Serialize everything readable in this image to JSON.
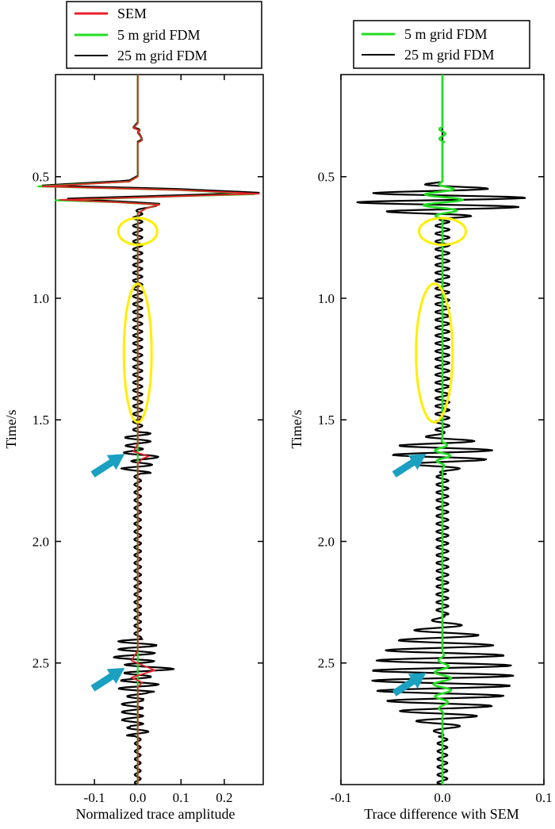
{
  "colors": {
    "sem": "#e8202a",
    "fdm5": "#22dd22",
    "fdm25": "#000000",
    "ellipse": "#ffee00",
    "arrow": "#1aa0c0"
  },
  "chart_data": [
    {
      "type": "line",
      "panel": "left",
      "xlabel": "Normalized trace amplitude",
      "ylabel": "Time/s",
      "xlim": [
        -0.19,
        0.29
      ],
      "ylim": [
        0.08,
        3.0
      ],
      "y_inverted": true,
      "xticks": [
        -0.1,
        0.0,
        0.1,
        0.2
      ],
      "xtick_labels": [
        "-0.1",
        "0.0",
        "0.1",
        "0.2"
      ],
      "yticks": [
        0.5,
        1.0,
        1.5,
        2.0,
        2.5
      ],
      "ytick_labels": [
        "0.5",
        "1.0",
        "1.5",
        "2.0",
        "2.5"
      ],
      "legend": {
        "placement": "top",
        "entries": [
          {
            "label": "SEM",
            "color": "#e8202a"
          },
          {
            "label": "5 m grid FDM",
            "color": "#22dd22"
          },
          {
            "label": "25 m grid FDM",
            "color": "#000000"
          }
        ]
      },
      "highlights": [
        {
          "shape": "ellipse",
          "t_center": 0.725,
          "t_halfspan": 0.055,
          "x_center": 0.0,
          "x_halfspan": 0.045
        },
        {
          "shape": "ellipse",
          "t_center": 1.225,
          "t_halfspan": 0.285,
          "x_center": 0.0,
          "x_halfspan": 0.032
        }
      ],
      "arrows": [
        {
          "t": 1.64,
          "x": -0.03
        },
        {
          "t": 2.52,
          "x": -0.03
        }
      ],
      "series": [
        {
          "name": "SEM",
          "color": "#e8202a",
          "points": [
            [
              0.0,
              0.08
            ],
            [
              0.0,
              0.28
            ],
            [
              -0.01,
              0.3
            ],
            [
              0.005,
              0.31
            ],
            [
              0.0,
              0.32
            ],
            [
              0.005,
              0.33
            ],
            [
              0.01,
              0.35
            ],
            [
              0.0,
              0.36
            ],
            [
              0.0,
              0.5
            ],
            [
              -0.02,
              0.52
            ],
            [
              -0.22,
              0.54
            ],
            [
              0.1,
              0.555
            ],
            [
              0.28,
              0.57
            ],
            [
              0.1,
              0.58
            ],
            [
              -0.18,
              0.595
            ],
            [
              -0.05,
              0.605
            ],
            [
              0.05,
              0.615
            ],
            [
              0.02,
              0.63
            ],
            [
              0.0,
              0.65
            ],
            [
              0.0,
              1.6
            ],
            [
              -0.01,
              1.63
            ],
            [
              0.025,
              1.65
            ],
            [
              0.01,
              1.66
            ],
            [
              0.0,
              1.68
            ],
            [
              0.0,
              2.45
            ],
            [
              -0.015,
              2.49
            ],
            [
              0.04,
              2.53
            ],
            [
              -0.015,
              2.56
            ],
            [
              0.01,
              2.58
            ],
            [
              0.0,
              2.6
            ],
            [
              0.0,
              3.0
            ]
          ]
        },
        {
          "name": "5 m grid FDM",
          "color": "#22dd22",
          "points": [
            [
              0.0,
              0.08
            ],
            [
              0.0,
              0.28
            ],
            [
              -0.01,
              0.3
            ],
            [
              0.005,
              0.31
            ],
            [
              0.0,
              0.32
            ],
            [
              0.005,
              0.33
            ],
            [
              0.01,
              0.35
            ],
            [
              0.0,
              0.36
            ],
            [
              0.0,
              0.5
            ],
            [
              -0.02,
              0.52
            ],
            [
              -0.23,
              0.54
            ],
            [
              0.1,
              0.555
            ],
            [
              0.27,
              0.572
            ],
            [
              0.1,
              0.58
            ],
            [
              -0.19,
              0.597
            ],
            [
              -0.05,
              0.605
            ],
            [
              0.05,
              0.615
            ],
            [
              0.02,
              0.63
            ],
            [
              0.0,
              0.65
            ],
            [
              0.0,
              3.0
            ]
          ]
        },
        {
          "name": "25 m grid FDM",
          "color": "#000000",
          "oscillatory": true
        }
      ]
    },
    {
      "type": "line",
      "panel": "right",
      "xlabel": "Trace difference with SEM",
      "ylabel": "Time/s",
      "xlim": [
        -0.1,
        0.1
      ],
      "ylim": [
        0.08,
        3.0
      ],
      "y_inverted": true,
      "xticks": [
        -0.1,
        0.0,
        0.1
      ],
      "xtick_labels": [
        "-0.1",
        "0.0",
        "0.1"
      ],
      "yticks": [
        0.5,
        1.0,
        1.5,
        2.0,
        2.5
      ],
      "ytick_labels": [
        "0.5",
        "1.0",
        "1.5",
        "2.0",
        "2.5"
      ],
      "legend": {
        "placement": "top",
        "entries": [
          {
            "label": "5 m grid FDM",
            "color": "#22dd22"
          },
          {
            "label": "25 m grid FDM",
            "color": "#000000"
          }
        ]
      },
      "highlights": [
        {
          "shape": "ellipse",
          "t_center": 0.725,
          "t_halfspan": 0.055,
          "x_center": 0.0,
          "x_halfspan": 0.023
        },
        {
          "shape": "ellipse",
          "t_center": 1.225,
          "t_halfspan": 0.285,
          "x_center": -0.008,
          "x_halfspan": 0.018
        }
      ],
      "arrows": [
        {
          "t": 1.64,
          "x": -0.016
        },
        {
          "t": 2.54,
          "x": -0.016
        }
      ],
      "series": [
        {
          "name": "5 m grid FDM",
          "color": "#22dd22",
          "oscillatory": true
        },
        {
          "name": "25 m grid FDM",
          "color": "#000000",
          "oscillatory": true
        }
      ]
    }
  ]
}
